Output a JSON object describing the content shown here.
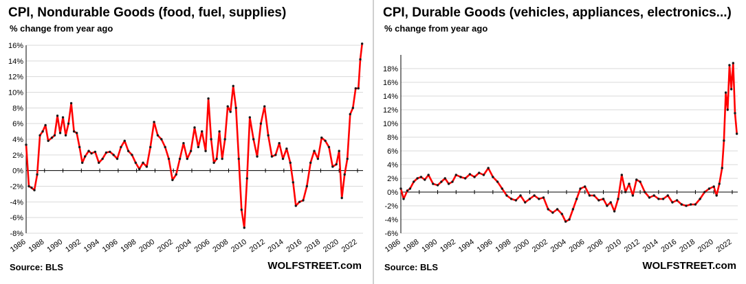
{
  "charts": [
    {
      "id": "left",
      "title": "CPI, Nondurable Goods (food, fuel, supplies)",
      "subtitle": "% change from year ago",
      "source": "Source: BLS",
      "brand": "WOLFSTREET.com"
    },
    {
      "id": "right",
      "title": "CPI, Durable Goods (vehicles, appliances,  electronics...)",
      "subtitle": "% change from year ago",
      "source": "Source: BLS",
      "brand": "WOLFSTREET.com"
    }
  ],
  "colors": {
    "line": "#ff0000",
    "marker": "#1a1a1a",
    "grid": "#d9d9d9",
    "axis": "#000000"
  },
  "chart_data": [
    {
      "type": "line",
      "title": "CPI, Nondurable Goods (food, fuel, supplies)",
      "ylabel": "% change from year ago",
      "ylim": [
        -8,
        16
      ],
      "xlim": [
        1986,
        2022.6
      ],
      "yticks": [
        -8,
        -6,
        -4,
        -2,
        0,
        2,
        4,
        6,
        8,
        10,
        12,
        14,
        16
      ],
      "xticks": [
        1986,
        1988,
        1990,
        1992,
        1994,
        1996,
        1998,
        2000,
        2002,
        2004,
        2006,
        2008,
        2010,
        2012,
        2014,
        2016,
        2018,
        2020,
        2022
      ],
      "grid": true,
      "x": [
        1986.0,
        1986.3,
        1986.6,
        1986.9,
        1987.2,
        1987.5,
        1987.8,
        1988.1,
        1988.4,
        1988.8,
        1989.1,
        1989.4,
        1989.7,
        1990.0,
        1990.3,
        1990.6,
        1990.9,
        1991.2,
        1991.5,
        1991.8,
        1992.1,
        1992.4,
        1992.8,
        1993.1,
        1993.5,
        1993.9,
        1994.3,
        1994.7,
        1995.1,
        1995.5,
        1995.9,
        1996.3,
        1996.7,
        1997.1,
        1997.5,
        1997.9,
        1998.3,
        1998.7,
        1999.1,
        1999.5,
        1999.9,
        2000.3,
        2000.7,
        2001.1,
        2001.5,
        2001.9,
        2002.3,
        2002.7,
        2003.1,
        2003.5,
        2003.9,
        2004.3,
        2004.7,
        2005.1,
        2005.5,
        2005.8,
        2006.1,
        2006.4,
        2006.7,
        2007.0,
        2007.3,
        2007.6,
        2007.9,
        2008.2,
        2008.5,
        2008.8,
        2009.1,
        2009.4,
        2009.7,
        2010.0,
        2010.3,
        2010.7,
        2011.1,
        2011.5,
        2011.9,
        2012.3,
        2012.7,
        2013.1,
        2013.5,
        2013.9,
        2014.3,
        2014.7,
        2015.0,
        2015.3,
        2015.7,
        2016.1,
        2016.5,
        2016.9,
        2017.3,
        2017.7,
        2018.1,
        2018.5,
        2018.9,
        2019.3,
        2019.7,
        2020.0,
        2020.3,
        2020.6,
        2020.9,
        2021.2,
        2021.5,
        2021.8,
        2022.1,
        2022.3,
        2022.5
      ],
      "values": [
        3.3,
        -2.0,
        -2.2,
        -2.5,
        -0.5,
        4.5,
        5.0,
        5.8,
        3.8,
        4.2,
        4.5,
        7.0,
        4.8,
        6.8,
        4.5,
        6.0,
        8.6,
        5.0,
        4.8,
        3.0,
        1.0,
        1.8,
        2.5,
        2.2,
        2.4,
        1.0,
        1.5,
        2.3,
        2.4,
        2.0,
        1.5,
        3.0,
        3.8,
        2.5,
        2.0,
        1.0,
        0.2,
        1.0,
        0.5,
        3.0,
        6.2,
        4.5,
        4.0,
        3.0,
        1.5,
        -1.2,
        -0.5,
        1.5,
        3.5,
        1.5,
        2.5,
        5.5,
        3.0,
        5.0,
        2.5,
        9.2,
        4.0,
        1.0,
        1.5,
        5.0,
        1.5,
        4.0,
        8.2,
        7.5,
        10.8,
        8.0,
        1.5,
        -5.0,
        -7.3,
        -1.0,
        6.8,
        4.0,
        1.8,
        6.0,
        8.2,
        4.5,
        1.8,
        2.0,
        3.5,
        1.5,
        2.8,
        1.0,
        -1.5,
        -4.5,
        -4.0,
        -3.8,
        -2.0,
        1.0,
        2.5,
        1.5,
        4.2,
        3.8,
        3.0,
        0.5,
        0.8,
        2.5,
        -3.5,
        -0.5,
        1.5,
        7.2,
        8.0,
        10.5,
        10.5,
        14.2,
        16.2
      ]
    },
    {
      "type": "line",
      "title": "CPI, Durable Goods (vehicles, appliances,  electronics...)",
      "ylabel": "% change from year ago",
      "ylim": [
        -6,
        20
      ],
      "xlim": [
        1986,
        2022.6
      ],
      "yticks": [
        -6,
        -4,
        -2,
        0,
        2,
        4,
        6,
        8,
        10,
        12,
        14,
        16,
        18
      ],
      "xticks": [
        1986,
        1988,
        1990,
        1992,
        1994,
        1996,
        1998,
        2000,
        2002,
        2004,
        2006,
        2008,
        2010,
        2012,
        2014,
        2016,
        2018,
        2020,
        2022
      ],
      "grid": true,
      "x": [
        1986.0,
        1986.3,
        1986.7,
        1987.0,
        1987.4,
        1987.8,
        1988.2,
        1988.6,
        1989.0,
        1989.5,
        1990.0,
        1990.4,
        1990.8,
        1991.2,
        1991.6,
        1992.0,
        1992.5,
        1993.0,
        1993.5,
        1994.0,
        1994.5,
        1995.0,
        1995.5,
        1996.0,
        1996.5,
        1997.0,
        1997.5,
        1998.0,
        1998.5,
        1999.0,
        1999.5,
        2000.0,
        2000.5,
        2001.0,
        2001.5,
        2002.0,
        2002.5,
        2003.0,
        2003.5,
        2003.9,
        2004.3,
        2004.7,
        2005.1,
        2005.5,
        2006.0,
        2006.5,
        2007.0,
        2007.5,
        2008.0,
        2008.4,
        2008.8,
        2009.2,
        2009.6,
        2010.0,
        2010.4,
        2010.8,
        2011.2,
        2011.6,
        2012.0,
        2012.5,
        2013.0,
        2013.5,
        2014.0,
        2014.5,
        2015.0,
        2015.5,
        2016.0,
        2016.5,
        2017.0,
        2017.5,
        2018.0,
        2018.5,
        2019.0,
        2019.5,
        2020.0,
        2020.3,
        2020.6,
        2020.9,
        2021.1,
        2021.3,
        2021.5,
        2021.7,
        2021.9,
        2022.1,
        2022.3,
        2022.5
      ],
      "values": [
        0.5,
        -1.0,
        0.2,
        0.5,
        1.5,
        2.0,
        2.2,
        1.8,
        2.5,
        1.2,
        1.0,
        1.5,
        2.0,
        1.2,
        1.5,
        2.5,
        2.2,
        2.0,
        2.6,
        2.2,
        2.8,
        2.5,
        3.5,
        2.2,
        1.5,
        0.5,
        -0.5,
        -1.0,
        -1.2,
        -0.5,
        -1.5,
        -1.0,
        -0.5,
        -1.0,
        -0.8,
        -2.5,
        -3.0,
        -2.5,
        -3.2,
        -4.3,
        -4.0,
        -2.5,
        -1.0,
        0.5,
        0.8,
        -0.5,
        -0.5,
        -1.2,
        -1.0,
        -2.0,
        -1.5,
        -2.8,
        -1.0,
        2.5,
        0.0,
        1.2,
        -0.5,
        1.8,
        1.5,
        0.0,
        -0.8,
        -0.5,
        -1.0,
        -1.0,
        -0.5,
        -1.5,
        -1.2,
        -1.8,
        -2.0,
        -1.8,
        -1.8,
        -1.0,
        0.0,
        0.5,
        0.8,
        -0.5,
        1.2,
        3.5,
        7.5,
        14.5,
        12.0,
        18.5,
        15.0,
        18.8,
        11.5,
        8.5
      ]
    }
  ]
}
